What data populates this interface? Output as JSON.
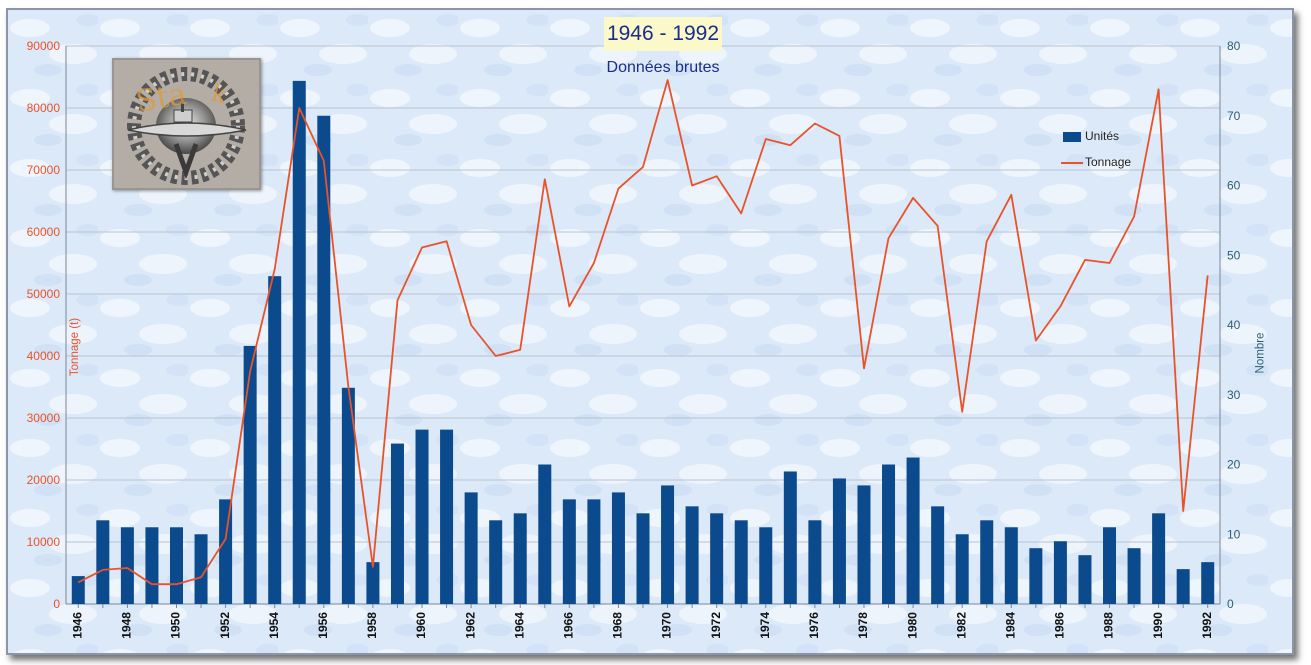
{
  "chart_data": {
    "type": "bar",
    "title": "1946 - 1992",
    "subtitle": "Données brutes",
    "ylabel_left": "Tonnage (t)",
    "ylabel_right": "Nombre",
    "ylim_left": [
      0,
      90000
    ],
    "ylim_right": [
      0,
      80
    ],
    "yticks_left": [
      "0",
      "10000",
      "20000",
      "30000",
      "40000",
      "50000",
      "60000",
      "70000",
      "80000",
      "90000"
    ],
    "yticks_right": [
      "0",
      "10",
      "20",
      "30",
      "40",
      "50",
      "60",
      "70",
      "80"
    ],
    "x": [
      1946,
      1947,
      1948,
      1949,
      1950,
      1951,
      1952,
      1953,
      1954,
      1955,
      1956,
      1957,
      1958,
      1959,
      1960,
      1961,
      1962,
      1963,
      1964,
      1965,
      1966,
      1967,
      1968,
      1969,
      1970,
      1971,
      1972,
      1973,
      1974,
      1975,
      1976,
      1977,
      1978,
      1979,
      1980,
      1981,
      1982,
      1983,
      1984,
      1985,
      1986,
      1987,
      1988,
      1989,
      1990,
      1991,
      1992
    ],
    "x_tick_labels": [
      "1946",
      "1948",
      "1950",
      "1952",
      "1954",
      "1956",
      "1958",
      "1960",
      "1962",
      "1964",
      "1966",
      "1968",
      "1970",
      "1972",
      "1974",
      "1976",
      "1978",
      "1980",
      "1982",
      "1984",
      "1986",
      "1988",
      "1990",
      "1992"
    ],
    "grid": true,
    "legend_position": "top-right",
    "series": [
      {
        "name": "Unités",
        "type": "bar",
        "axis": "right",
        "color": "#0b4a8c",
        "values": [
          4,
          12,
          11,
          11,
          11,
          10,
          15,
          37,
          47,
          75,
          70,
          31,
          6,
          23,
          25,
          25,
          16,
          12,
          13,
          20,
          15,
          15,
          16,
          13,
          17,
          14,
          13,
          12,
          11,
          19,
          12,
          18,
          17,
          20,
          21,
          14,
          10,
          12,
          11,
          8,
          9,
          7,
          11,
          8,
          13,
          5,
          6
        ]
      },
      {
        "name": "Tonnage",
        "type": "line",
        "axis": "left",
        "color": "#e8532a",
        "values": [
          3500,
          5500,
          5800,
          3200,
          3200,
          4300,
          10500,
          37500,
          54000,
          80000,
          71500,
          35000,
          6000,
          49000,
          57500,
          58500,
          45000,
          40000,
          41000,
          68500,
          48000,
          55000,
          67000,
          70500,
          84500,
          67500,
          69000,
          63000,
          75000,
          74000,
          77500,
          75500,
          38000,
          59000,
          65500,
          61000,
          31000,
          58500,
          66000,
          42500,
          48000,
          55500,
          55000,
          62500,
          83000,
          15000,
          53000
        ]
      }
    ],
    "colors": {
      "background": "#dce9f8",
      "left_axis_text": "#e8532a",
      "right_axis_text": "#2e5f73",
      "grid": "#b8c4d0"
    }
  }
}
